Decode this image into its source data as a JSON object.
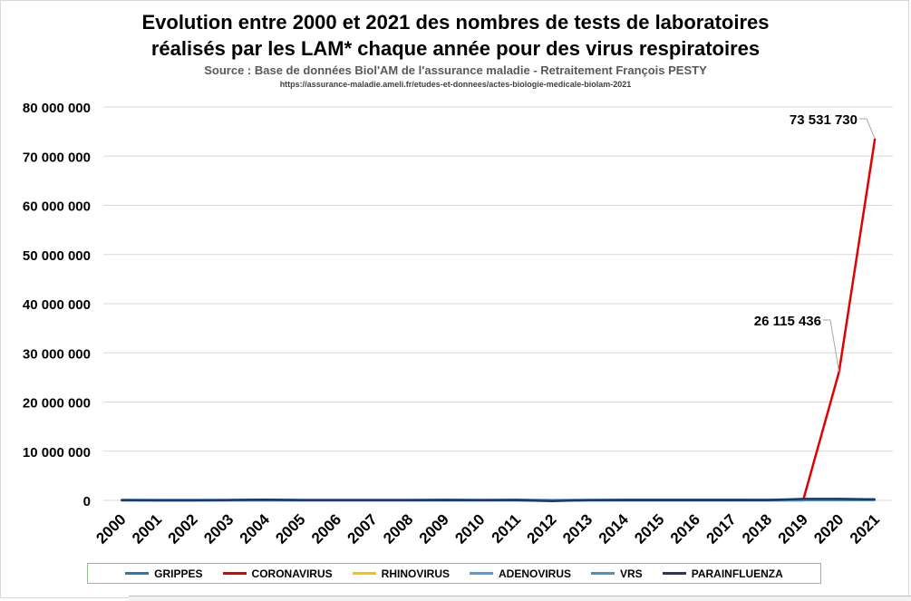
{
  "chart_data": {
    "type": "line",
    "title_line1": "Evolution entre 2000 et 2021 des nombres de tests de laboratoires",
    "title_line2": "réalisés par les LAM* chaque année pour des virus respiratoires",
    "subtitle": "Source : Base de données Biol'AM de l'assurance maladie - Retraitement François PESTY",
    "url": "https://assurance-maladie.ameli.fr/etudes-et-donnees/actes-biologie-medicale-biolam-2021",
    "x": [
      "2000",
      "2001",
      "2002",
      "2003",
      "2004",
      "2005",
      "2006",
      "2007",
      "2008",
      "2009",
      "2010",
      "2011",
      "2012",
      "2013",
      "2014",
      "2015",
      "2016",
      "2017",
      "2018",
      "2019",
      "2020",
      "2021"
    ],
    "ylim": [
      0,
      80000000
    ],
    "yticks": [
      0,
      10000000,
      20000000,
      30000000,
      40000000,
      50000000,
      60000000,
      70000000,
      80000000
    ],
    "ytick_labels": [
      "0",
      "10 000 000",
      "20 000 000",
      "30 000 000",
      "40 000 000",
      "50 000 000",
      "60 000 000",
      "70 000 000",
      "80 000 000"
    ],
    "grid": true,
    "legend_position": "bottom",
    "series": [
      {
        "name": "GRIPPES",
        "color": "#2e75b6",
        "values": [
          100000,
          100000,
          100000,
          100000,
          150000,
          100000,
          100000,
          100000,
          100000,
          120000,
          100000,
          120000,
          80000,
          100000,
          120000,
          120000,
          130000,
          140000,
          150000,
          180000,
          250000,
          200000
        ]
      },
      {
        "name": "CORONAVIRUS",
        "color": "#e00000",
        "values": [
          0,
          0,
          0,
          0,
          0,
          0,
          0,
          0,
          0,
          0,
          0,
          0,
          0,
          0,
          0,
          0,
          0,
          0,
          0,
          0,
          26115436,
          73531730
        ]
      },
      {
        "name": "RHINOVIRUS",
        "color": "#ffc000",
        "values": [
          0,
          0,
          0,
          0,
          0,
          0,
          0,
          0,
          0,
          0,
          0,
          0,
          0,
          0,
          0,
          0,
          0,
          0,
          0,
          10000,
          20000,
          30000
        ]
      },
      {
        "name": "ADENOVIRUS",
        "color": "#5b9bd5",
        "values": [
          30000,
          30000,
          30000,
          30000,
          30000,
          30000,
          30000,
          30000,
          30000,
          30000,
          30000,
          30000,
          30000,
          30000,
          30000,
          30000,
          30000,
          30000,
          30000,
          40000,
          30000,
          40000
        ]
      },
      {
        "name": "VRS",
        "color": "#4a90c2",
        "values": [
          50000,
          50000,
          50000,
          50000,
          60000,
          50000,
          50000,
          50000,
          50000,
          50000,
          50000,
          50000,
          50000,
          50000,
          50000,
          60000,
          60000,
          60000,
          70000,
          80000,
          90000,
          90000
        ]
      },
      {
        "name": "PARAINFLUENZA",
        "color": "#1f3864",
        "values": [
          50000,
          0,
          0,
          50000,
          150000,
          50000,
          50000,
          50000,
          50000,
          50000,
          50000,
          50000,
          -150000,
          50000,
          50000,
          50000,
          50000,
          50000,
          50000,
          300000,
          300000,
          200000
        ]
      }
    ],
    "annotations": [
      {
        "series": "CORONAVIRUS",
        "x": "2020",
        "label": "26 115 436"
      },
      {
        "series": "CORONAVIRUS",
        "x": "2021",
        "label": "73 531 730"
      }
    ]
  }
}
